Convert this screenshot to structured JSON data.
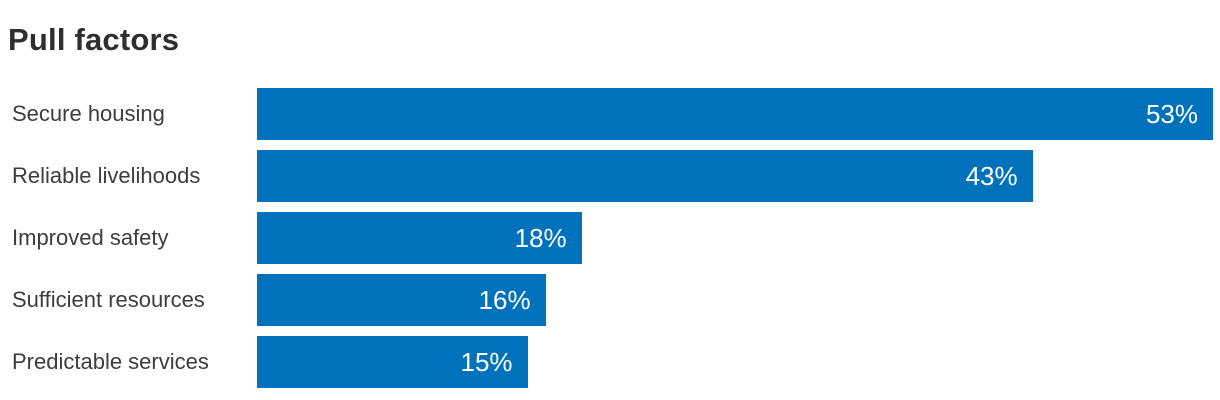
{
  "title": "Pull factors",
  "chart_data": {
    "type": "bar",
    "orientation": "horizontal",
    "title": "Pull factors",
    "xlabel": "",
    "ylabel": "",
    "categories": [
      "Secure housing",
      "Reliable livelihoods",
      "Improved safety",
      "Sufficient resources",
      "Predictable services"
    ],
    "values": [
      53,
      43,
      18,
      16,
      15
    ],
    "value_labels": [
      "53%",
      "43%",
      "18%",
      "16%",
      "15%"
    ],
    "unit": "%",
    "xlim": [
      0,
      53
    ],
    "grid": false,
    "legend": false,
    "axes_visible": false,
    "colors": {
      "bar": "#0072bc",
      "value_label": "#ffffff",
      "category_label": "#3d3d3d",
      "title": "#2e2e2e",
      "background": "#ffffff"
    }
  }
}
